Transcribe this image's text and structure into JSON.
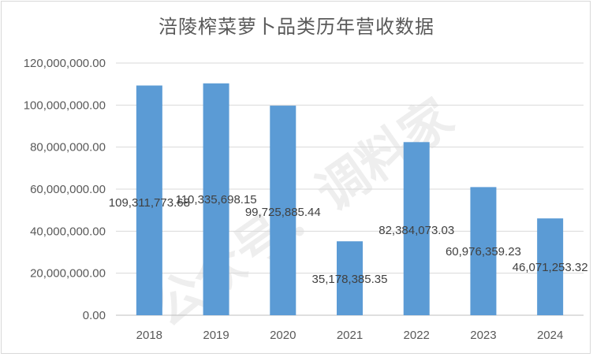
{
  "chart_data": {
    "type": "bar",
    "title": "涪陵榨菜萝卜品类历年营收数据",
    "xlabel": "",
    "ylabel": "",
    "categories": [
      "2018",
      "2019",
      "2020",
      "2021",
      "2022",
      "2023",
      "2024"
    ],
    "values": [
      109311773.68,
      110335698.15,
      99725885.44,
      35178385.35,
      82384073.03,
      60976359.23,
      46071253.32
    ],
    "data_labels": [
      "109,311,773.68",
      "110,335,698.15",
      "99,725,885.44",
      "35,178,385.35",
      "82,384,073.03",
      "60,976,359.23",
      "46,071,253.32"
    ],
    "ylim": [
      0,
      120000000
    ],
    "yticks": [
      "0.00",
      "20,000,000.00",
      "40,000,000.00",
      "60,000,000.00",
      "80,000,000.00",
      "100,000,000.00",
      "120,000,000.00"
    ],
    "grid": true,
    "legend": "none",
    "bar_color": "#5b9bd5"
  },
  "watermark": "公众号：调料家"
}
